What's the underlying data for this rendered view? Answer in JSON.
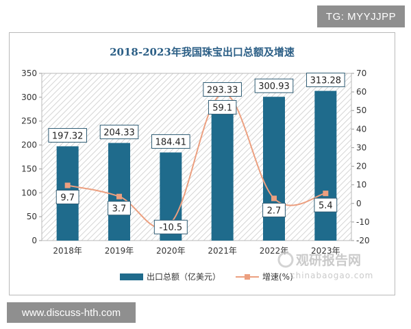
{
  "badge_top": "TG: MYYJJPP",
  "badge_bottom": "www.discuss-hth.com",
  "watermark": {
    "brand_cn": "观研报告网",
    "brand_url": "chinabaogao.com"
  },
  "colors": {
    "bar": "#1f6b8c",
    "line": "#ec9f7f",
    "title": "#2c5f86"
  },
  "chart_data": {
    "type": "bar",
    "title": "2018-2023年我国珠宝出口总额及增速",
    "categories": [
      "2018年",
      "2019年",
      "2020年",
      "2021年",
      "2022年",
      "2023年"
    ],
    "series": [
      {
        "name": "出口总额（亿美元）",
        "type": "bar",
        "axis": "left",
        "values": [
          197.32,
          204.33,
          184.41,
          293.33,
          300.93,
          313.28
        ],
        "labels": [
          "197.32",
          "204.33",
          "184.41",
          "293.33",
          "300.93",
          "313.28"
        ]
      },
      {
        "name": "增速(%)",
        "type": "line",
        "axis": "right",
        "values": [
          9.7,
          3.7,
          -10.5,
          59.1,
          2.7,
          5.4
        ],
        "labels": [
          "9.7",
          "3.7",
          "-10.5",
          "59.1",
          "2.7",
          "5.4"
        ]
      }
    ],
    "ylim_left": [
      0,
      350
    ],
    "ylim_right": [
      -20,
      70
    ],
    "left_ticks": [
      "0",
      "50",
      "100",
      "150",
      "200",
      "250",
      "300",
      "350"
    ],
    "right_ticks": [
      "-20",
      "-10",
      "0",
      "10",
      "20",
      "30",
      "40",
      "50",
      "60",
      "70"
    ],
    "legend_position": "bottom"
  }
}
